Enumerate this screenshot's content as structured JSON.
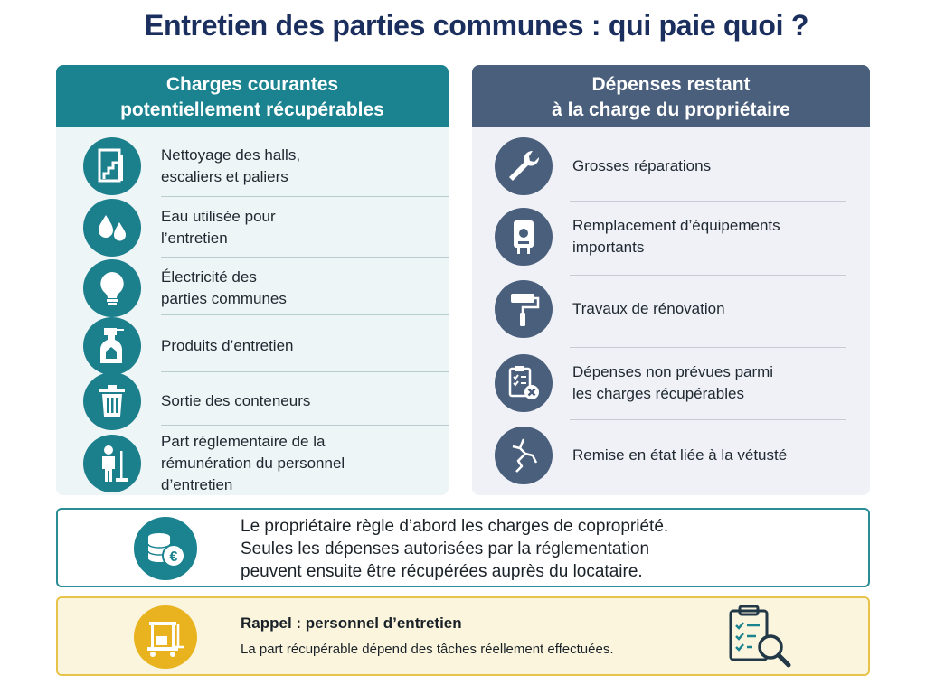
{
  "title": "Entretien des parties communes : qui paie quoi ?",
  "left_panel": {
    "header_line1": "Charges courantes",
    "header_line2": "potentiellement récupérables",
    "items": [
      {
        "icon": "door-stairs-icon",
        "label": "Nettoyage des halls,\nescaliers et paliers"
      },
      {
        "icon": "water-drops-icon",
        "label": "Eau utilisée pour\nl’entretien"
      },
      {
        "icon": "lightbulb-icon",
        "label": "Électricité des\nparties communes"
      },
      {
        "icon": "spray-bottle-icon",
        "label": "Produits d’entretien"
      },
      {
        "icon": "trash-bin-icon",
        "label": "Sortie des conteneurs"
      },
      {
        "icon": "cleaning-staff-icon",
        "label": "Part réglementaire de la\nrémunération du personnel\nd’entretien"
      }
    ]
  },
  "right_panel": {
    "header_line1": "Dépenses restant",
    "header_line2": "à la charge du propriétaire",
    "items": [
      {
        "icon": "wrench-icon",
        "label": "Grosses réparations"
      },
      {
        "icon": "water-heater-icon",
        "label": "Remplacement d’équipements\nimportants"
      },
      {
        "icon": "paint-roller-icon",
        "label": "Travaux de rénovation"
      },
      {
        "icon": "checklist-cross-icon",
        "label": "Dépenses non prévues parmi\nles charges récupérables"
      },
      {
        "icon": "wall-crack-icon",
        "label": "Remise en état liée à la vétusté"
      }
    ]
  },
  "info_note": {
    "icon": "coins-euro-icon",
    "line1": "Le propriétaire règle d’abord les charges de copropriété.",
    "line2": "Seules les dépenses autorisées par la réglementation",
    "line3": "peuvent ensuite être récupérées auprès du locataire."
  },
  "reminder_note": {
    "icon": "cleaning-cart-icon",
    "title": "Rappel : personnel d’entretien",
    "text": "La part récupérable dépend des tâches réellement effectuées.",
    "side_icon": "clipboard-magnifier-icon"
  },
  "colors": {
    "teal": "#1b8390",
    "slate": "#4a5f7c",
    "navy_title": "#1b2f5e",
    "yellow": "#e9b320"
  }
}
